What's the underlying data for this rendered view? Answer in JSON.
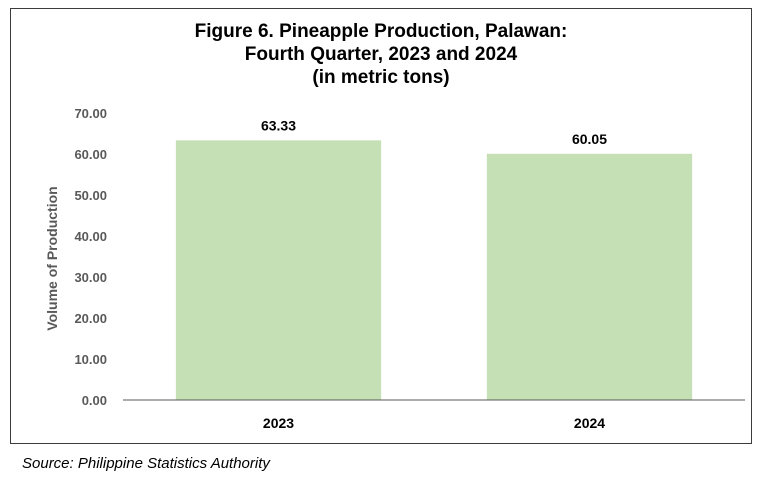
{
  "chart_data": {
    "type": "bar",
    "title": [
      "Figure 6. Pineapple Production, Palawan:",
      "Fourth Quarter, 2023 and 2024",
      "(in metric tons)"
    ],
    "categories": [
      "2023",
      "2024"
    ],
    "values": [
      63.33,
      60.05
    ],
    "data_labels": [
      "63.33",
      "60.05"
    ],
    "ylabel": "Volume of Production",
    "xlabel": "",
    "ylim": [
      0,
      70
    ],
    "yticks": [
      "0.00",
      "10.00",
      "20.00",
      "30.00",
      "40.00",
      "50.00",
      "60.00",
      "70.00"
    ],
    "grid": false,
    "legend": "none",
    "bar_color": "#c5e0b4",
    "axis_color": "#595959"
  },
  "source": "Source: Philippine Statistics Authority"
}
